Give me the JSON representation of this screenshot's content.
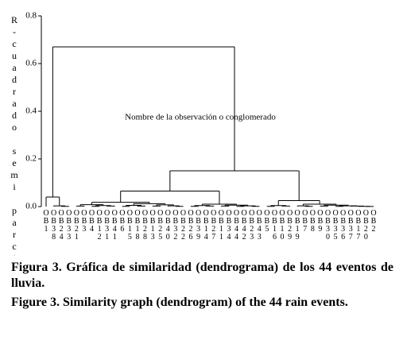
{
  "chart_data": {
    "type": "dendrogram",
    "ylabel": "R-cuadrado semi parcial",
    "xlabel": "Nombre de la observación o conglomerado",
    "ylim": [
      0,
      0.8
    ],
    "yticks": [
      {
        "value": 0,
        "label": "0.0"
      },
      0.2,
      0.4,
      0.6,
      0.8
    ],
    "color": "#000000",
    "tree": {
      "height": 0.67,
      "children": [
        {
          "height": 0.04,
          "children": [
            "OB1",
            {
              "height": 0.003,
              "children": [
                "OB38",
                {
                  "height": 0.001,
                  "children": [
                    "OB24",
                    "OB33"
                  ]
                }
              ]
            }
          ]
        },
        {
          "height": 0.15,
          "children": [
            {
              "height": 0.065,
              "children": [
                {
                  "height": 0.018,
                  "children": [
                    {
                      "height": 0.008,
                      "children": [
                        {
                          "height": 0.002,
                          "children": [
                            "OB21",
                            "OB3"
                          ]
                        },
                        {
                          "height": 0.004,
                          "children": [
                            {
                              "height": 0.001,
                              "children": [
                                "OB4",
                                "OB12"
                              ]
                            },
                            {
                              "height": 0.002,
                              "children": [
                                "OB31",
                                "OB41"
                              ]
                            }
                          ]
                        }
                      ]
                    },
                    {
                      "height": 0.012,
                      "children": [
                        {
                          "height": 0.005,
                          "children": [
                            {
                              "height": 0.001,
                              "children": [
                                "OB6",
                                "OB15"
                              ]
                            },
                            {
                              "height": 0.002,
                              "children": [
                                "OB18",
                                "OB28"
                              ]
                            }
                          ]
                        },
                        {
                          "height": 0.007,
                          "children": [
                            {
                              "height": 0.002,
                              "children": [
                                "OB13",
                                "OB25"
                              ]
                            },
                            {
                              "height": 0.003,
                              "children": [
                                "OB40",
                                {
                                  "height": 0.001,
                                  "children": [
                                    "OB32",
                                    "OB22"
                                  ]
                                }
                              ]
                            }
                          ]
                        }
                      ]
                    }
                  ]
                },
                {
                  "height": 0.01,
                  "children": [
                    {
                      "height": 0.004,
                      "children": [
                        {
                          "height": 0.001,
                          "children": [
                            "OB26",
                            "OB39"
                          ]
                        },
                        {
                          "height": 0.002,
                          "children": [
                            "OB14",
                            "OB27"
                          ]
                        }
                      ]
                    },
                    {
                      "height": 0.006,
                      "children": [
                        {
                          "height": 0.002,
                          "children": [
                            "OB11",
                            "OB34"
                          ]
                        },
                        {
                          "height": 0.003,
                          "children": [
                            {
                              "height": 0.001,
                              "children": [
                                "OB44",
                                "OB42"
                              ]
                            },
                            {
                              "height": 0.001,
                              "children": [
                                "OB23",
                                "OB43"
                              ]
                            }
                          ]
                        }
                      ]
                    }
                  ]
                }
              ]
            },
            {
              "height": 0.025,
              "children": [
                {
                  "height": 0.004,
                  "children": [
                    {
                      "height": 0.001,
                      "children": [
                        "OB5",
                        "OB16"
                      ]
                    },
                    {
                      "height": 0.002,
                      "children": [
                        "OB10",
                        "OB29"
                      ]
                    }
                  ]
                },
                {
                  "height": 0.01,
                  "children": [
                    {
                      "height": 0.003,
                      "children": [
                        "OB19",
                        {
                          "height": 0.001,
                          "children": [
                            "OB7",
                            "OB8"
                          ]
                        }
                      ]
                    },
                    {
                      "height": 0.006,
                      "children": [
                        {
                          "height": 0.002,
                          "children": [
                            "OB9",
                            "OB30"
                          ]
                        },
                        {
                          "height": 0.003,
                          "children": [
                            {
                              "height": 0.001,
                              "children": [
                                "OB35",
                                "OB36"
                              ]
                            },
                            {
                              "height": 0.002,
                              "children": [
                                "OB37",
                                {
                                  "height": 0.001,
                                  "children": [
                                    "OB17",
                                    {
                                      "height": 0.0005,
                                      "children": [
                                        "OB20",
                                        "OB2"
                                      ]
                                    }
                                  ]
                                }
                              ]
                            }
                          ]
                        }
                      ]
                    }
                  ]
                }
              ]
            }
          ]
        }
      ]
    }
  },
  "captions": [
    "Figura 3. Gráfica de similaridad (dendrograma) de los 44 eventos de lluvia.",
    "Figure 3. Similarity graph (dendrogram) of the 44 rain events."
  ]
}
